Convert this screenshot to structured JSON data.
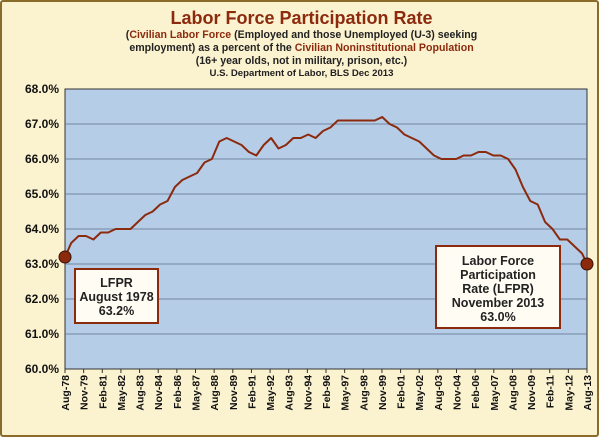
{
  "header": {
    "title": "Labor Force Participation Rate",
    "subtitle_line1_open": "(",
    "subtitle_line1_highlight": "Civilian Labor Force",
    "subtitle_line1_rest": " (Employed and those Unemployed (U-3) seeking",
    "subtitle_line2_start": "employment) as a percent of the ",
    "subtitle_line2_highlight": "Civilian Noninstitutional Population",
    "subtitle_line3": "(16+ year olds, not in military, prison, etc.)",
    "source": "U.S. Department of Labor, BLS Dec 2013"
  },
  "callouts": {
    "left": {
      "line1": "LFPR",
      "line2": "August 1978",
      "line3": "63.2%"
    },
    "right": {
      "line1": "Labor Force",
      "line2": "Participation",
      "line3": "Rate (LFPR)",
      "line4": "November 2013",
      "line5": "63.0%"
    }
  },
  "colors": {
    "plot_bg": "#b6cde8",
    "line": "#8c2a0e",
    "title": "#8c2a0e",
    "page_bg": "#fbf2cf",
    "grid": "#5d6f88"
  },
  "chart_data": {
    "type": "line",
    "title": "Labor Force Participation Rate",
    "ylim": [
      60.0,
      68.0
    ],
    "y_ticks": [
      "60.0%",
      "61.0%",
      "62.0%",
      "63.0%",
      "64.0%",
      "65.0%",
      "66.0%",
      "67.0%",
      "68.0%"
    ],
    "x_tick_labels": [
      "Aug-78",
      "Nov-79",
      "Feb-81",
      "May-82",
      "Aug-83",
      "Nov-84",
      "Feb-86",
      "May-87",
      "Aug-88",
      "Nov-89",
      "Feb-91",
      "May-92",
      "Aug-93",
      "Nov-94",
      "Feb-96",
      "May-97",
      "Aug-98",
      "Nov-99",
      "Feb-01",
      "May-02",
      "Aug-03",
      "Nov-04",
      "Feb-06",
      "May-07",
      "Aug-08",
      "Nov-09",
      "Feb-11",
      "May-12",
      "Aug-13"
    ],
    "x_range": [
      1978.58,
      2013.83
    ],
    "grid": "horizontal",
    "series": [
      {
        "x": [
          1978.58,
          1979.0,
          1979.5,
          1980.0,
          1980.5,
          1981.0,
          1981.5,
          1982.0,
          1982.5,
          1983.0,
          1983.5,
          1984.0,
          1984.5,
          1985.0,
          1985.5,
          1986.0,
          1986.5,
          1987.0,
          1987.5,
          1988.0,
          1988.5,
          1989.0,
          1989.5,
          1990.0,
          1990.5,
          1991.0,
          1991.5,
          1992.0,
          1992.5,
          1993.0,
          1993.5,
          1994.0,
          1994.5,
          1995.0,
          1995.5,
          1996.0,
          1996.5,
          1997.0,
          1997.5,
          1998.0,
          1998.5,
          1999.0,
          1999.5,
          2000.0,
          2000.5,
          2001.0,
          2001.5,
          2002.0,
          2002.5,
          2003.0,
          2003.5,
          2004.0,
          2004.5,
          2005.0,
          2005.5,
          2006.0,
          2006.5,
          2007.0,
          2007.5,
          2008.0,
          2008.5,
          2009.0,
          2009.5,
          2010.0,
          2010.5,
          2011.0,
          2011.5,
          2012.0,
          2012.5,
          2013.0,
          2013.5,
          2013.83
        ],
        "values": [
          63.2,
          63.6,
          63.8,
          63.8,
          63.7,
          63.9,
          63.9,
          64.0,
          64.0,
          64.0,
          64.2,
          64.4,
          64.5,
          64.7,
          64.8,
          65.2,
          65.4,
          65.5,
          65.6,
          65.9,
          66.0,
          66.5,
          66.6,
          66.5,
          66.4,
          66.2,
          66.1,
          66.4,
          66.6,
          66.3,
          66.4,
          66.6,
          66.6,
          66.7,
          66.6,
          66.8,
          66.9,
          67.1,
          67.1,
          67.1,
          67.1,
          67.1,
          67.1,
          67.2,
          67.0,
          66.9,
          66.7,
          66.6,
          66.5,
          66.3,
          66.1,
          66.0,
          66.0,
          66.0,
          66.1,
          66.1,
          66.2,
          66.2,
          66.1,
          66.1,
          66.0,
          65.7,
          65.2,
          64.8,
          64.7,
          64.2,
          64.0,
          63.7,
          63.7,
          63.5,
          63.3,
          63.0
        ]
      }
    ],
    "endpoints": [
      {
        "x": 1978.58,
        "y": 63.2
      },
      {
        "x": 2013.83,
        "y": 63.0
      }
    ]
  }
}
